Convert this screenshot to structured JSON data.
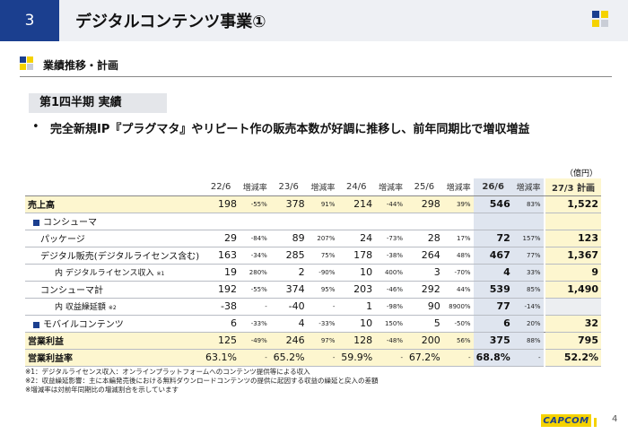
{
  "header": {
    "section_number": "3",
    "title": "デジタルコンテンツ事業①"
  },
  "subtitle": "業績推移・計画",
  "quarter_label": "第1四半期 実績",
  "bullet_text": "完全新規IP『プラグマタ』やリピート作の販売本数が好調に推移し、前年同期比で増収増益",
  "unit": "（億円）",
  "table": {
    "headers": {
      "y1": "22/6",
      "y2": "23/6",
      "y3": "24/6",
      "y4": "25/6",
      "y5": "26/6",
      "rate": "増減率",
      "plan": "27/3 計画"
    },
    "rows": [
      {
        "label": "売上高",
        "v": [
          "198",
          "378",
          "214",
          "298",
          "546"
        ],
        "r": [
          "-55%",
          "91%",
          "-44%",
          "39%",
          "83%"
        ],
        "plan": "1,522"
      },
      {
        "label": "コンシューマ"
      },
      {
        "label": "パッケージ",
        "v": [
          "29",
          "89",
          "24",
          "28",
          "72"
        ],
        "r": [
          "-84%",
          "207%",
          "-73%",
          "17%",
          "157%"
        ],
        "plan": "123"
      },
      {
        "label": "デジタル販売(デジタルライセンス含む)",
        "v": [
          "163",
          "285",
          "178",
          "264",
          "467"
        ],
        "r": [
          "-34%",
          "75%",
          "-38%",
          "48%",
          "77%"
        ],
        "plan": "1,367"
      },
      {
        "label": "内 デジタルライセンス収入",
        "note": "※1",
        "v": [
          "19",
          "2",
          "10",
          "3",
          "4"
        ],
        "r": [
          "280%",
          "-90%",
          "400%",
          "-70%",
          "33%"
        ],
        "plan": "9"
      },
      {
        "label": "コンシューマ計",
        "v": [
          "192",
          "374",
          "203",
          "292",
          "539"
        ],
        "r": [
          "-55%",
          "95%",
          "-46%",
          "44%",
          "85%"
        ],
        "plan": "1,490"
      },
      {
        "label": "内 収益繰延額",
        "note": "※2",
        "v": [
          "-38",
          "-40",
          "1",
          "90",
          "77"
        ],
        "r": [
          "-",
          "-",
          "-98%",
          "8900%",
          "-14%"
        ],
        "plan": ""
      },
      {
        "label": "モバイルコンテンツ",
        "v": [
          "6",
          "4",
          "10",
          "5",
          "6"
        ],
        "r": [
          "-33%",
          "-33%",
          "150%",
          "-50%",
          "20%"
        ],
        "plan": "32"
      },
      {
        "label": "営業利益",
        "v": [
          "125",
          "246",
          "128",
          "200",
          "375"
        ],
        "r": [
          "-49%",
          "97%",
          "-48%",
          "56%",
          "88%"
        ],
        "plan": "795"
      },
      {
        "label": "営業利益率",
        "v": [
          "63.1%",
          "65.2%",
          "59.9%",
          "67.2%",
          "68.8%"
        ],
        "r": [
          "-",
          "-",
          "-",
          "-",
          "-"
        ],
        "plan": "52.2%"
      }
    ]
  },
  "notes": [
    "※1：デジタルライセンス収入：オンラインプラットフォームへのコンテンツ提供等による収入",
    "※2：収益繰延影響：主に本編発売後における無料ダウンロードコンテンツの提供に起因する収益の繰延と戻入の差額",
    "※増減率は対前年同期比の増減割合を示しています"
  ],
  "logo_text": "CAPCOM",
  "page_number": "4",
  "colors": {
    "navy": "#1b3f8f",
    "highlight": "#fdf6cf",
    "current_col": "#dfe5ef"
  }
}
